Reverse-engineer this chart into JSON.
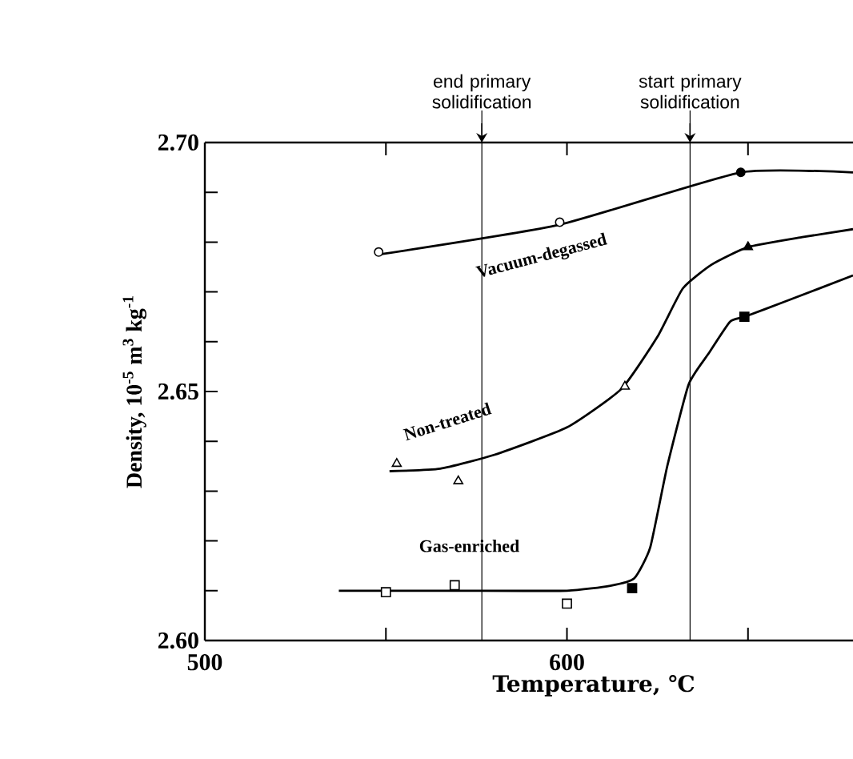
{
  "chart_data": {
    "type": "line",
    "xlabel": "Temperature, ℃",
    "ylabel": "Density, 10$^{-5}$ m$^{3}$ kg$^{-1}$",
    "xlim": [
      500,
      679
    ],
    "ylim": [
      2.6,
      2.7
    ],
    "xticks": [
      500,
      {
        "value": 550,
        "label": null
      },
      600,
      {
        "value": 650,
        "label": null
      }
    ],
    "yticks": [
      {
        "value": 2.6,
        "label": "2.60"
      },
      {
        "value": 2.61,
        "label": null
      },
      {
        "value": 2.62,
        "label": null
      },
      {
        "value": 2.63,
        "label": null
      },
      {
        "value": 2.64,
        "label": null
      },
      2.65,
      {
        "value": 2.66,
        "label": null
      },
      {
        "value": 2.67,
        "label": null
      },
      {
        "value": 2.68,
        "label": null
      },
      {
        "value": 2.69,
        "label": null
      },
      {
        "value": 2.7,
        "label": "2.70"
      }
    ],
    "series": [
      {
        "color": "#000000",
        "x": [
          548,
          598,
          648,
          679
        ],
        "values": [
          2.6775,
          2.6835,
          2.694,
          2.694
        ]
      },
      {
        "color": "#000000",
        "x": [
          551,
          565,
          580,
          600,
          615,
          625,
          632,
          640,
          650,
          665,
          679
        ],
        "values": [
          2.634,
          2.6345,
          2.6373,
          2.6428,
          2.6505,
          2.661,
          2.6707,
          2.6755,
          2.679,
          2.681,
          2.6826
        ]
      },
      {
        "color": "#000000",
        "x": [
          537,
          550,
          570,
          600,
          612,
          618.6,
          623,
          627.7,
          633.6,
          639,
          645,
          649,
          660,
          679
        ],
        "values": [
          2.61,
          2.61,
          2.61,
          2.61,
          2.611,
          2.6125,
          2.6187,
          2.635,
          2.6514,
          2.6575,
          2.664,
          2.665,
          2.668,
          2.6733
        ]
      },
      {
        "type": "scatter",
        "marker": "circle",
        "color": "#ffffff",
        "x": [
          548,
          598
        ],
        "values": [
          2.678,
          2.684
        ]
      },
      {
        "type": "scatter",
        "marker": "circle",
        "color": "#000000",
        "x": [
          648
        ],
        "values": [
          2.694
        ]
      },
      {
        "type": "scatter",
        "marker": "triangle",
        "color": "#ffffff",
        "x": [
          553,
          570,
          616
        ],
        "values": [
          2.6355,
          2.632,
          2.651
        ]
      },
      {
        "type": "scatter",
        "marker": "triangle",
        "color": "#000000",
        "x": [
          650
        ],
        "values": [
          2.679
        ]
      },
      {
        "type": "scatter",
        "marker": "square",
        "color": "#ffffff",
        "x": [
          550,
          569,
          600
        ],
        "values": [
          2.6097,
          2.6111,
          2.6074
        ]
      },
      {
        "type": "scatter",
        "marker": "square",
        "color": "#000000",
        "x": [
          618,
          649
        ],
        "values": [
          2.6105,
          2.665
        ]
      }
    ],
    "ref_lines": [
      {
        "axis": "x",
        "value": 576.5,
        "label": "end primary solidification"
      },
      {
        "axis": "x",
        "value": 634,
        "label": "start primary solidification"
      }
    ],
    "annotations": [
      "Vacuum-degassed",
      "Non-treated",
      "Gas-enriched"
    ]
  }
}
